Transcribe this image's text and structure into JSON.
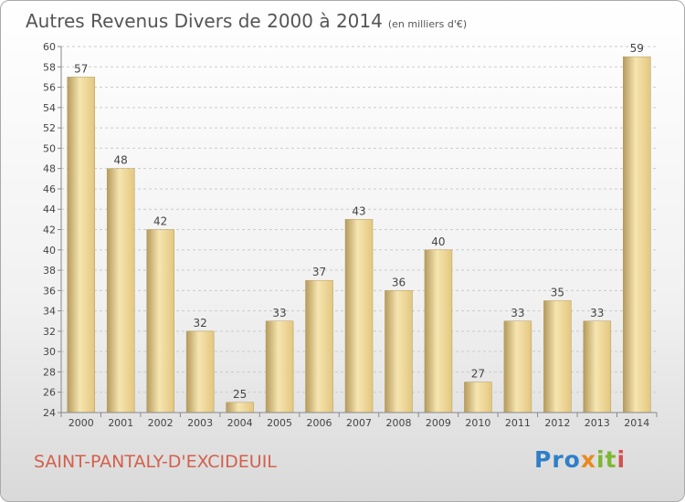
{
  "title": "Autres Revenus Divers de 2000 à 2014",
  "subtitle": "(en milliers d'€)",
  "location": "SAINT-PANTALY-D'EXCIDEUIL",
  "logo": {
    "text": "Proxiti",
    "parts": [
      "Pro",
      "x",
      "it",
      "i"
    ]
  },
  "colors": {
    "bar": "#e3c77f",
    "bar_light": "#f6e5b0",
    "bar_shadow": "#b59a5c",
    "grid": "#cccccc",
    "axis_text": "#444444",
    "title": "#555555",
    "location": "#d4604b"
  },
  "chart_data": {
    "type": "bar",
    "categories": [
      "2000",
      "2001",
      "2002",
      "2003",
      "2004",
      "2005",
      "2006",
      "2007",
      "2008",
      "2009",
      "2010",
      "2011",
      "2012",
      "2013",
      "2014"
    ],
    "values": [
      57,
      48,
      42,
      32,
      25,
      33,
      37,
      43,
      36,
      40,
      27,
      33,
      35,
      33,
      59
    ],
    "data_labels": [
      "57",
      "48",
      "42",
      "32",
      "25",
      "33",
      "37",
      "43",
      "36",
      "40",
      "27",
      "33",
      "35",
      "33",
      "59"
    ],
    "ylim": [
      24,
      60
    ],
    "yticks": [
      24,
      26,
      28,
      30,
      32,
      34,
      36,
      38,
      40,
      42,
      44,
      46,
      48,
      50,
      52,
      54,
      56,
      58,
      60
    ],
    "grid": true,
    "legend": "none"
  }
}
